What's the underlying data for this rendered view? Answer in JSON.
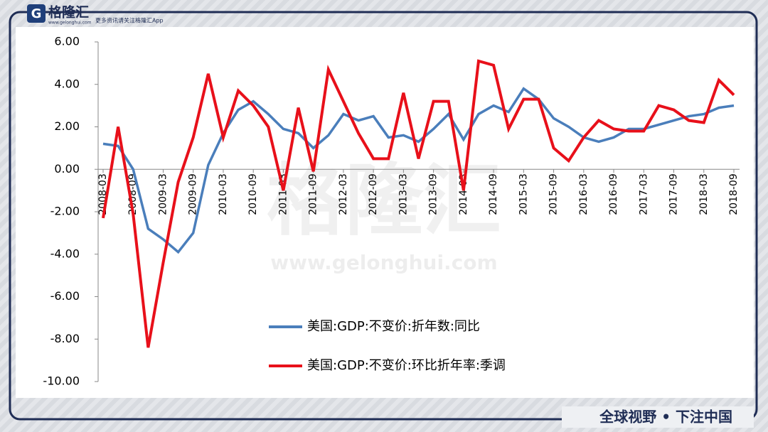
{
  "branding": {
    "logo": "格隆汇",
    "logo_url": "www.gelonghui.com",
    "tagline": "更多资讯请关注格隆汇App",
    "watermark": "格隆汇",
    "watermark_url": "www.gelonghui.com",
    "slogan": "全球视野 • 下注中国"
  },
  "chart_data": {
    "type": "line",
    "categories": [
      "2008-03",
      null,
      "2008-09",
      null,
      "2009-03",
      null,
      "2009-09",
      null,
      "2010-03",
      null,
      "2010-09",
      null,
      "2011-03",
      null,
      "2011-09",
      null,
      "2012-03",
      null,
      "2012-09",
      null,
      "2013-03",
      null,
      "2013-09",
      null,
      "2014-03",
      null,
      "2014-09",
      null,
      "2015-03",
      null,
      "2015-09",
      null,
      "2016-03",
      null,
      "2016-09",
      null,
      "2017-03",
      null,
      "2017-09",
      null,
      "2018-03",
      null,
      "2018-09"
    ],
    "series": [
      {
        "name": "美国:GDP:不变价:折年数:同比",
        "color": "#4a7ebb",
        "values": [
          1.2,
          1.1,
          0.0,
          -2.8,
          -3.3,
          -3.9,
          -3.0,
          0.2,
          1.7,
          2.8,
          3.2,
          2.6,
          1.9,
          1.7,
          1.0,
          1.6,
          2.6,
          2.3,
          2.5,
          1.5,
          1.6,
          1.3,
          1.9,
          2.6,
          1.4,
          2.6,
          3.0,
          2.7,
          3.8,
          3.3,
          2.4,
          2.0,
          1.5,
          1.3,
          1.5,
          1.9,
          1.9,
          2.1,
          2.3,
          2.5,
          2.6,
          2.9,
          3.0
        ]
      },
      {
        "name": "美国:GDP:不变价:环比折年率:季调",
        "color": "#e8101a",
        "values": [
          -2.3,
          2.0,
          -2.1,
          -8.4,
          -4.4,
          -0.6,
          1.5,
          4.5,
          1.5,
          3.7,
          3.0,
          2.0,
          -1.0,
          2.9,
          -0.1,
          4.7,
          3.2,
          1.7,
          0.5,
          0.5,
          3.6,
          0.5,
          3.2,
          3.2,
          -1.0,
          5.1,
          4.9,
          1.9,
          3.3,
          3.3,
          1.0,
          0.4,
          1.5,
          2.3,
          1.9,
          1.8,
          1.8,
          3.0,
          2.8,
          2.3,
          2.2,
          4.2,
          3.5
        ]
      }
    ],
    "ylim": [
      -10,
      6
    ],
    "yticks": [
      {
        "value": -10,
        "label": "-10.00"
      },
      {
        "value": -8,
        "label": "-8.00"
      },
      {
        "value": -6,
        "label": "-6.00"
      },
      {
        "value": -4,
        "label": "-4.00"
      },
      {
        "value": -2,
        "label": "-2.00"
      },
      {
        "value": 0,
        "label": "0.00"
      },
      {
        "value": 2,
        "label": "2.00"
      },
      {
        "value": 4,
        "label": "4.00"
      },
      {
        "value": 6,
        "label": "6.00"
      }
    ],
    "grid": false
  }
}
